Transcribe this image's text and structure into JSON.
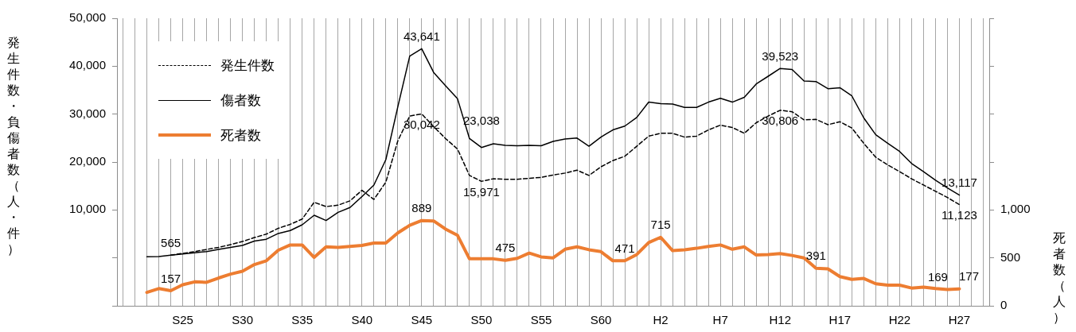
{
  "chart_data": {
    "type": "line",
    "ylabel": "発生件数・負傷者数（人・件）",
    "y2label": "死者数（人）",
    "categories": [
      null,
      null,
      null,
      null,
      null,
      "S25",
      null,
      null,
      null,
      null,
      "S30",
      null,
      null,
      null,
      null,
      "S35",
      null,
      null,
      null,
      null,
      "S40",
      null,
      null,
      null,
      null,
      "S45",
      null,
      null,
      null,
      null,
      "S50",
      null,
      null,
      null,
      null,
      "S55",
      null,
      null,
      null,
      null,
      "S60",
      null,
      null,
      null,
      null,
      "H2",
      null,
      null,
      null,
      null,
      "H7",
      null,
      null,
      null,
      null,
      "H12",
      null,
      null,
      null,
      null,
      "H17",
      null,
      null,
      null,
      null,
      "H22",
      null,
      null,
      null,
      null,
      "H27",
      null,
      null
    ],
    "series": [
      {
        "name": "発生件数",
        "color": "#000000",
        "line_style": "dashed",
        "values": [
          null,
          null,
          null,
          null,
          565,
          940,
          1320,
          1760,
          2200,
          2760,
          3420,
          4240,
          4960,
          6170,
          7000,
          8100,
          11600,
          10700,
          11000,
          11900,
          14100,
          12200,
          15800,
          24400,
          29600,
          30042,
          27400,
          24900,
          22700,
          17200,
          15971,
          16500,
          16400,
          16400,
          16600,
          16800,
          17300,
          17700,
          18300,
          17200,
          19000,
          20300,
          21200,
          23300,
          25400,
          26000,
          26000,
          25200,
          25400,
          26700,
          27700,
          27200,
          26000,
          28200,
          29600,
          30806,
          30500,
          28800,
          28900,
          27800,
          28400,
          27100,
          23900,
          21000,
          19400,
          18000,
          16500,
          15200,
          13900,
          12600,
          11123,
          null,
          null
        ],
        "value_labels": [
          null,
          null,
          null,
          null,
          "565",
          null,
          null,
          null,
          null,
          null,
          null,
          null,
          null,
          null,
          null,
          null,
          null,
          null,
          null,
          null,
          null,
          null,
          null,
          null,
          null,
          "30,042",
          null,
          null,
          null,
          null,
          "15,971",
          null,
          null,
          null,
          null,
          null,
          null,
          null,
          null,
          null,
          null,
          null,
          null,
          null,
          null,
          null,
          null,
          null,
          null,
          null,
          null,
          null,
          null,
          null,
          null,
          "30,806",
          null,
          null,
          null,
          null,
          null,
          null,
          null,
          null,
          null,
          null,
          null,
          null,
          null,
          null,
          "11,123",
          null,
          null
        ]
      },
      {
        "name": "傷者数",
        "color": "#000000",
        "line_style": "solid",
        "values": [
          null,
          null,
          220,
          280,
          550,
          800,
          1050,
          1320,
          1760,
          2200,
          2600,
          3500,
          3900,
          5100,
          5700,
          6900,
          8900,
          7800,
          9500,
          10500,
          12800,
          15200,
          20500,
          31500,
          42100,
          43641,
          38700,
          35900,
          33200,
          24900,
          23038,
          23800,
          23500,
          23400,
          23500,
          23400,
          24300,
          24800,
          25000,
          23300,
          25200,
          26700,
          27500,
          29300,
          32500,
          32200,
          32100,
          31400,
          31400,
          32500,
          33300,
          32500,
          33500,
          36300,
          37900,
          39523,
          39300,
          36900,
          36800,
          35300,
          35500,
          33800,
          29200,
          25700,
          23900,
          22200,
          19700,
          18000,
          16200,
          14600,
          13117,
          null,
          null
        ],
        "value_labels": [
          null,
          null,
          null,
          null,
          null,
          null,
          null,
          null,
          null,
          null,
          null,
          null,
          null,
          null,
          null,
          null,
          null,
          null,
          null,
          null,
          null,
          null,
          null,
          null,
          null,
          "43,641",
          null,
          null,
          null,
          null,
          "23,038",
          null,
          null,
          null,
          null,
          null,
          null,
          null,
          null,
          null,
          null,
          null,
          null,
          null,
          null,
          null,
          null,
          null,
          null,
          null,
          null,
          null,
          null,
          null,
          null,
          "39,523",
          null,
          null,
          null,
          null,
          null,
          null,
          null,
          null,
          null,
          null,
          null,
          null,
          null,
          null,
          "13,117",
          null,
          null
        ]
      },
      {
        "name": "死者数",
        "color": "#ed7d31",
        "line_style": "solid",
        "axis": "y2",
        "values": [
          null,
          null,
          140,
          180,
          157,
          220,
          250,
          245,
          290,
          330,
          360,
          430,
          470,
          580,
          635,
          635,
          505,
          615,
          610,
          620,
          630,
          655,
          655,
          760,
          840,
          889,
          885,
          800,
          735,
          490,
          490,
          490,
          475,
          495,
          550,
          510,
          500,
          590,
          615,
          585,
          565,
          470,
          471,
          535,
          660,
          715,
          575,
          585,
          600,
          620,
          635,
          590,
          615,
          530,
          535,
          545,
          525,
          500,
          391,
          385,
          305,
          275,
          285,
          230,
          215,
          215,
          185,
          195,
          180,
          169,
          177,
          null,
          null
        ],
        "value_labels": [
          null,
          null,
          null,
          null,
          "157",
          null,
          null,
          null,
          null,
          null,
          null,
          null,
          null,
          null,
          null,
          null,
          null,
          null,
          null,
          null,
          null,
          null,
          null,
          null,
          null,
          "889",
          null,
          null,
          null,
          null,
          null,
          null,
          "475",
          null,
          null,
          null,
          null,
          null,
          null,
          null,
          null,
          null,
          "471",
          null,
          null,
          "715",
          null,
          null,
          null,
          null,
          null,
          null,
          null,
          null,
          null,
          null,
          null,
          null,
          "391",
          null,
          null,
          null,
          null,
          null,
          null,
          null,
          null,
          null,
          null,
          "169",
          "177",
          null,
          null
        ]
      }
    ],
    "ylim": [
      -10000,
      50000
    ],
    "yticks": [
      {
        "value": -10000,
        "label": null
      },
      {
        "value": 0,
        "label": null
      },
      {
        "value": 10000,
        "label": "10,000"
      },
      {
        "value": 20000,
        "label": "20,000"
      },
      {
        "value": 30000,
        "label": "30,000"
      },
      {
        "value": 40000,
        "label": "40,000"
      },
      {
        "value": 50000,
        "label": "50,000"
      }
    ],
    "y2lim": [
      0,
      3000
    ],
    "y2ticks": [
      0,
      500,
      {
        "value": 1000,
        "label": "1,000"
      },
      {
        "value": 1500,
        "label": null
      },
      {
        "value": 2000,
        "label": null
      },
      {
        "value": 2500,
        "label": null
      },
      {
        "value": 3000,
        "label": null
      }
    ],
    "grid": "x",
    "legend": "top left",
    "marker": "none"
  }
}
